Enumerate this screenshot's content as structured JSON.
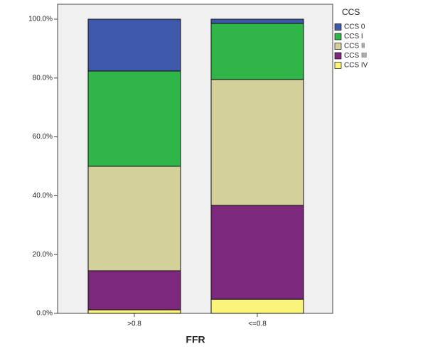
{
  "chart_data": {
    "type": "stacked_bar",
    "x_label": "FFR",
    "legend_title": "CCS",
    "legend_position": "right",
    "categories": [
      ">0.8",
      "<=0.8"
    ],
    "series": [
      {
        "name": "CCS 0",
        "color": "#3e58ac",
        "values": [
          17.6,
          1.4
        ]
      },
      {
        "name": "CCS I",
        "color": "#2fb548",
        "values": [
          32.4,
          19.1
        ]
      },
      {
        "name": "CCS II",
        "color": "#d4d09a",
        "values": [
          35.5,
          42.8
        ]
      },
      {
        "name": "CCS III",
        "color": "#7c287c",
        "values": [
          13.3,
          31.9
        ]
      },
      {
        "name": "CCS IV",
        "color": "#fbf47a",
        "values": [
          1.2,
          4.8
        ]
      }
    ],
    "ylim": [
      0,
      100
    ],
    "yticks": [
      {
        "value": 0,
        "label": "0.0%"
      },
      {
        "value": 20,
        "label": "20.0%"
      },
      {
        "value": 40,
        "label": "40.0%"
      },
      {
        "value": 60,
        "label": "60.0%"
      },
      {
        "value": 80,
        "label": "80.0%"
      },
      {
        "value": 100,
        "label": "100.0%"
      }
    ]
  }
}
